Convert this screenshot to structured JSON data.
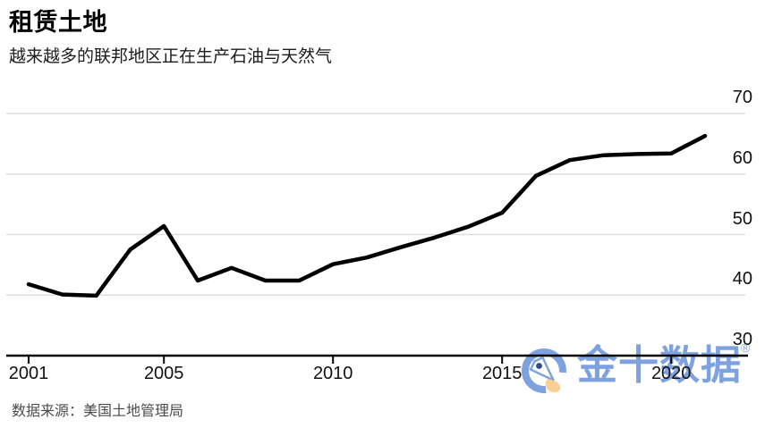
{
  "header": {
    "title": "租赁土地",
    "subtitle": "越来越多的联邦地区正在生产石油与天然气"
  },
  "footer": {
    "source": "数据来源：美国土地管理局"
  },
  "watermark": {
    "text": "金十数据",
    "registered": "®",
    "blue": "#7EA2DF",
    "dark_blue": "#2E4B8F",
    "orange": "#F9CE97"
  },
  "colors": {
    "line": "#000000",
    "grid": "#dedede",
    "axis": "#000000",
    "tick_label": "#111111",
    "background": "#ffffff"
  },
  "chart_data": {
    "type": "line",
    "title": "租赁土地",
    "subtitle": "越来越多的联邦地区正在生产石油与天然气",
    "source": "数据来源：美国土地管理局",
    "x": [
      2001,
      2002,
      2003,
      2004,
      2005,
      2006,
      2007,
      2008,
      2009,
      2010,
      2011,
      2012,
      2013,
      2014,
      2015,
      2016,
      2017,
      2018,
      2019,
      2020,
      2021
    ],
    "values": [
      41.8,
      40.1,
      39.9,
      47.5,
      51.4,
      42.4,
      44.5,
      42.4,
      42.4,
      45.1,
      46.2,
      47.9,
      49.5,
      51.3,
      53.6,
      59.7,
      62.3,
      63.1,
      63.3,
      63.4,
      66.3
    ],
    "x_ticks": [
      2001,
      2005,
      2010,
      2015,
      2020
    ],
    "y_ticks": [
      30,
      40,
      50,
      60,
      70
    ],
    "ylim": [
      30,
      70
    ],
    "xlabel": "",
    "ylabel": "",
    "y_axis_side": "right",
    "grid": "horizontal",
    "legend": "none",
    "line_width": 4.5
  }
}
